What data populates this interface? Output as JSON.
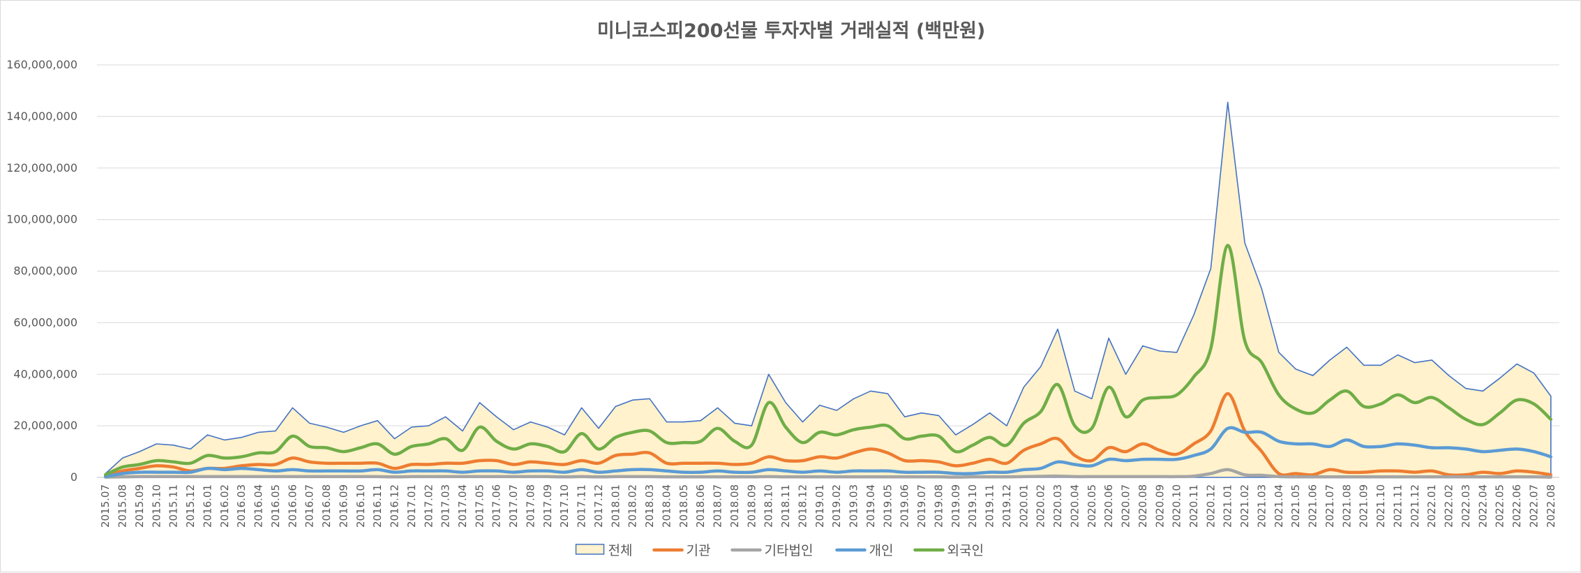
{
  "chart_data": {
    "type": "line",
    "title": "미니코스피200선물 투자자별 거래실적 (백만원)",
    "xlabel": "",
    "ylabel": "",
    "ylim": [
      0,
      160000000
    ],
    "yticks": [
      0,
      20000000,
      40000000,
      60000000,
      80000000,
      100000000,
      120000000,
      140000000,
      160000000
    ],
    "ytick_labels": [
      "0",
      "20,000,000",
      "40,000,000",
      "60,000,000",
      "80,000,000",
      "100,000,000",
      "120,000,000",
      "140,000,000",
      "160,000,000"
    ],
    "grid": true,
    "legend_position": "bottom",
    "categories": [
      "2015.07",
      "2015.08",
      "2015.09",
      "2015.10",
      "2015.11",
      "2015.12",
      "2016.01",
      "2016.02",
      "2016.03",
      "2016.04",
      "2016.05",
      "2016.06",
      "2016.07",
      "2016.08",
      "2016.09",
      "2016.10",
      "2016.11",
      "2016.12",
      "2017.01",
      "2017.02",
      "2017.03",
      "2017.04",
      "2017.05",
      "2017.06",
      "2017.07",
      "2017.08",
      "2017.09",
      "2017.10",
      "2017.11",
      "2017.12",
      "2018.01",
      "2018.02",
      "2018.03",
      "2018.04",
      "2018.05",
      "2018.06",
      "2018.07",
      "2018.08",
      "2018.09",
      "2018.10",
      "2018.11",
      "2018.12",
      "2019.01",
      "2019.02",
      "2019.03",
      "2019.04",
      "2019.05",
      "2019.06",
      "2019.07",
      "2019.08",
      "2019.09",
      "2019.10",
      "2019.11",
      "2019.12",
      "2020.01",
      "2020.02",
      "2020.03",
      "2020.04",
      "2020.05",
      "2020.06",
      "2020.07",
      "2020.08",
      "2020.09",
      "2020.10",
      "2020.11",
      "2020.12",
      "2021.01",
      "2021.02",
      "2021.03",
      "2021.04",
      "2021.05",
      "2021.06",
      "2021.07",
      "2021.08",
      "2021.09",
      "2021.10",
      "2021.11",
      "2021.12",
      "2022.01",
      "2022.02",
      "2022.03",
      "2022.04",
      "2022.05",
      "2022.06",
      "2022.07",
      "2022.08"
    ],
    "series": [
      {
        "name": "전체",
        "kind": "area",
        "color": "#4472c4",
        "fill": "#fff2cc",
        "values": [
          1500000,
          7500000,
          10000000,
          13000000,
          12500000,
          11000000,
          16500000,
          14500000,
          15500000,
          17500000,
          18000000,
          27000000,
          21000000,
          19500000,
          17500000,
          20000000,
          22000000,
          15000000,
          19500000,
          20000000,
          23500000,
          18000000,
          29000000,
          23500000,
          18500000,
          21500000,
          19500000,
          16500000,
          27000000,
          19000000,
          27500000,
          30000000,
          30500000,
          21500000,
          21500000,
          22000000,
          27000000,
          21000000,
          20000000,
          40000000,
          29000000,
          21500000,
          28000000,
          26000000,
          30500000,
          33500000,
          32500000,
          23500000,
          25000000,
          24000000,
          16500000,
          20500000,
          25000000,
          20000000,
          35000000,
          43000000,
          57500000,
          33500000,
          30500000,
          54000000,
          40000000,
          51000000,
          49000000,
          48500000,
          63000000,
          81000000,
          145500000,
          91000000,
          73000000,
          48500000,
          42000000,
          39500000,
          45500000,
          50500000,
          43500000,
          43500000,
          47500000,
          44500000,
          45500000,
          39500000,
          34500000,
          33500000,
          38500000,
          44000000,
          40500000,
          31500000
        ]
      },
      {
        "name": "기관",
        "kind": "line",
        "color": "#ed7d31",
        "values": [
          500000,
          2500000,
          3500000,
          4500000,
          4000000,
          2500000,
          3500000,
          3500000,
          4500000,
          5000000,
          5000000,
          7500000,
          6000000,
          5500000,
          5500000,
          5500000,
          5500000,
          3500000,
          5000000,
          5000000,
          5500000,
          5500000,
          6500000,
          6500000,
          5000000,
          6000000,
          5500000,
          5000000,
          6500000,
          5500000,
          8500000,
          9000000,
          9500000,
          5500000,
          5500000,
          5500000,
          5500000,
          5000000,
          5500000,
          8000000,
          6500000,
          6500000,
          8000000,
          7500000,
          9500000,
          11000000,
          9500000,
          6500000,
          6500000,
          6000000,
          4500000,
          5500000,
          7000000,
          5500000,
          10500000,
          13000000,
          15000000,
          8500000,
          6500000,
          11500000,
          10000000,
          13000000,
          10500000,
          9000000,
          13000000,
          18000000,
          32500000,
          18000000,
          10000000,
          1500000,
          1500000,
          1000000,
          3000000,
          2000000,
          2000000,
          2500000,
          2500000,
          2000000,
          2500000,
          1000000,
          1000000,
          2000000,
          1500000,
          2500000,
          2000000,
          1000000
        ]
      },
      {
        "name": "기타법인",
        "kind": "line",
        "color": "#a5a5a5",
        "values": [
          100000,
          200000,
          300000,
          300000,
          300000,
          300000,
          300000,
          300000,
          300000,
          300000,
          300000,
          300000,
          300000,
          300000,
          300000,
          300000,
          300000,
          200000,
          300000,
          300000,
          300000,
          300000,
          300000,
          300000,
          300000,
          300000,
          300000,
          200000,
          300000,
          200000,
          300000,
          300000,
          300000,
          200000,
          200000,
          200000,
          200000,
          200000,
          200000,
          300000,
          200000,
          200000,
          200000,
          200000,
          200000,
          200000,
          200000,
          200000,
          200000,
          200000,
          100000,
          200000,
          200000,
          200000,
          300000,
          400000,
          500000,
          300000,
          300000,
          300000,
          300000,
          300000,
          300000,
          300000,
          500000,
          1500000,
          3000000,
          1000000,
          800000,
          300000,
          200000,
          200000,
          200000,
          200000,
          200000,
          200000,
          200000,
          200000,
          200000,
          200000,
          200000,
          200000,
          200000,
          200000,
          200000,
          100000
        ]
      },
      {
        "name": "개인",
        "kind": "line",
        "color": "#5b9bd5",
        "values": [
          300000,
          1500000,
          2000000,
          2000000,
          2000000,
          2000000,
          3500000,
          3000000,
          3500000,
          3000000,
          2500000,
          3000000,
          2500000,
          2500000,
          2500000,
          2500000,
          3000000,
          2000000,
          2500000,
          2500000,
          2500000,
          2000000,
          2500000,
          2500000,
          2000000,
          2500000,
          2500000,
          2000000,
          3000000,
          2000000,
          2500000,
          3000000,
          3000000,
          2500000,
          2000000,
          2000000,
          2500000,
          2000000,
          2000000,
          3000000,
          2500000,
          2000000,
          2500000,
          2000000,
          2500000,
          2500000,
          2500000,
          2000000,
          2000000,
          2000000,
          1500000,
          1500000,
          2000000,
          2000000,
          3000000,
          3500000,
          6000000,
          5000000,
          4500000,
          7000000,
          6500000,
          7000000,
          7000000,
          7000000,
          8500000,
          11000000,
          19000000,
          17500000,
          17500000,
          14000000,
          13000000,
          13000000,
          12000000,
          14500000,
          12000000,
          12000000,
          13000000,
          12500000,
          11500000,
          11500000,
          11000000,
          10000000,
          10500000,
          11000000,
          10000000,
          8000000
        ]
      },
      {
        "name": "외국인",
        "kind": "line",
        "color": "#70ad47",
        "values": [
          1000000,
          4000000,
          5000000,
          6500000,
          6000000,
          5500000,
          8500000,
          7500000,
          8000000,
          9500000,
          10000000,
          16000000,
          12000000,
          11500000,
          10000000,
          11500000,
          13000000,
          9000000,
          12000000,
          13000000,
          15000000,
          10500000,
          19500000,
          14000000,
          11000000,
          13000000,
          12000000,
          10000000,
          17000000,
          11000000,
          15500000,
          17500000,
          18000000,
          13500000,
          13500000,
          14000000,
          19000000,
          14000000,
          12500000,
          29000000,
          19500000,
          13500000,
          17500000,
          16500000,
          18500000,
          19500000,
          20000000,
          15000000,
          16000000,
          16000000,
          10000000,
          12500000,
          15500000,
          12500000,
          21000000,
          25500000,
          36000000,
          20000000,
          19000000,
          35000000,
          23500000,
          30000000,
          31000000,
          32000000,
          39000000,
          50000000,
          90000000,
          53000000,
          44500000,
          32000000,
          26500000,
          25000000,
          30000000,
          33500000,
          27500000,
          28500000,
          32000000,
          29000000,
          31000000,
          27000000,
          22500000,
          20500000,
          25000000,
          30000000,
          28500000,
          22500000
        ]
      }
    ]
  }
}
